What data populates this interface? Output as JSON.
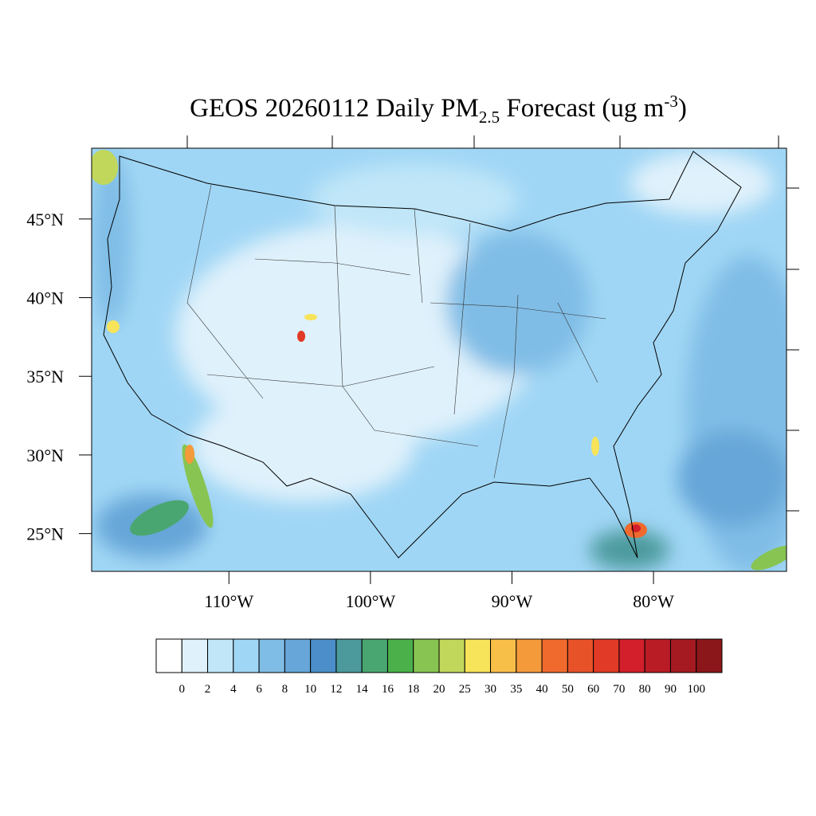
{
  "map": {
    "title": {
      "main": "GEOS 20260112 Daily PM",
      "sub": "2.5",
      "mid": " Forecast (ug m",
      "sup": "-3",
      "end": ")"
    },
    "lonlim": [
      -119.7,
      -70.6
    ],
    "latlim": [
      22.6,
      49.5
    ],
    "lat_ticks": [
      {
        "value": 45,
        "label": "45°N"
      },
      {
        "value": 40,
        "label": "40°N"
      },
      {
        "value": 35,
        "label": "35°N"
      },
      {
        "value": 30,
        "label": "30°N"
      },
      {
        "value": 25,
        "label": "25°N"
      }
    ],
    "lon_ticks": [
      {
        "value": -110,
        "label": "110°W"
      },
      {
        "value": -100,
        "label": "100°W"
      },
      {
        "value": -90,
        "label": "90°W"
      },
      {
        "value": -80,
        "label": "80°W"
      }
    ],
    "colorbar": {
      "colors": [
        "#ffffff",
        "#dff1fb",
        "#c0e6f8",
        "#a0d6f5",
        "#80bde6",
        "#66a6d8",
        "#4b8ec9",
        "#4c9a9c",
        "#4aa670",
        "#4bb04a",
        "#88c452",
        "#c1d75b",
        "#f8e45a",
        "#f8bf48",
        "#f59a3b",
        "#f06a2d",
        "#e85228",
        "#e13a26",
        "#d21f2b",
        "#b91c25",
        "#a41a20",
        "#8b171b"
      ],
      "levels": [
        0,
        2,
        4,
        6,
        8,
        10,
        12,
        14,
        16,
        18,
        20,
        25,
        30,
        35,
        40,
        50,
        60,
        70,
        80,
        90,
        100
      ]
    }
  }
}
